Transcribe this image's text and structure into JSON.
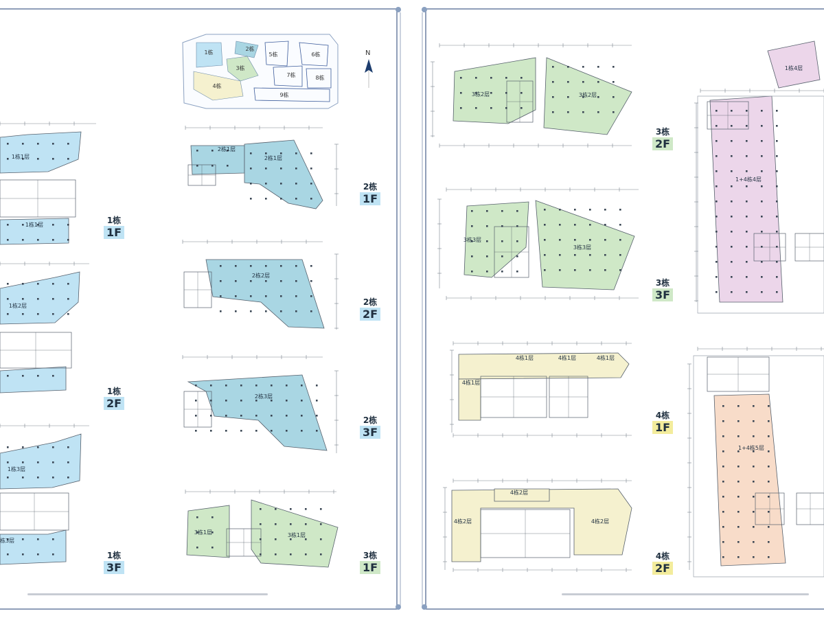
{
  "colors": {
    "frame": "#6a7fa0",
    "blue_fill": "#bfe3f4",
    "teal_fill": "#a9d6e3",
    "green_fill": "#cfe8c7",
    "yellow_fill": "#f5f1cf",
    "pink_fill": "#ecd6ea",
    "peach_fill": "#f8dcc9",
    "line": "#555f6b"
  },
  "keymap": {
    "labels": [
      "1栋",
      "2栋",
      "3栋",
      "4栋",
      "5栋",
      "6栋",
      "7栋",
      "8栋",
      "9栋"
    ]
  },
  "compass": {
    "north": "N"
  },
  "floor_tags": [
    {
      "building": "1栋",
      "floor": "1F"
    },
    {
      "building": "1栋",
      "floor": "2F"
    },
    {
      "building": "1栋",
      "floor": "3F"
    },
    {
      "building": "2栋",
      "floor": "1F"
    },
    {
      "building": "2栋",
      "floor": "2F"
    },
    {
      "building": "2栋",
      "floor": "3F"
    },
    {
      "building": "3栋",
      "floor": "1F"
    },
    {
      "building": "3栋",
      "floor": "2F"
    },
    {
      "building": "3栋",
      "floor": "3F"
    },
    {
      "building": "4栋",
      "floor": "1F"
    },
    {
      "building": "4栋",
      "floor": "2F"
    }
  ],
  "plan_labels": [
    "1栋1层",
    "1栋1层",
    "1栋2层",
    "1栋3层",
    "1栋3层",
    "2栋1层",
    "2栋1层",
    "2栋2层",
    "2栋3层",
    "3栋1层",
    "3栋1层",
    "3栋2层",
    "3栋2层",
    "3栋3层",
    "3栋3层",
    "4栋1层",
    "4栋1层",
    "4栋1层",
    "4栋1层",
    "4栋2层",
    "4栋2层",
    "4栋2层",
    "1+4栋4层",
    "1+4栋5层",
    "1栋4层"
  ]
}
